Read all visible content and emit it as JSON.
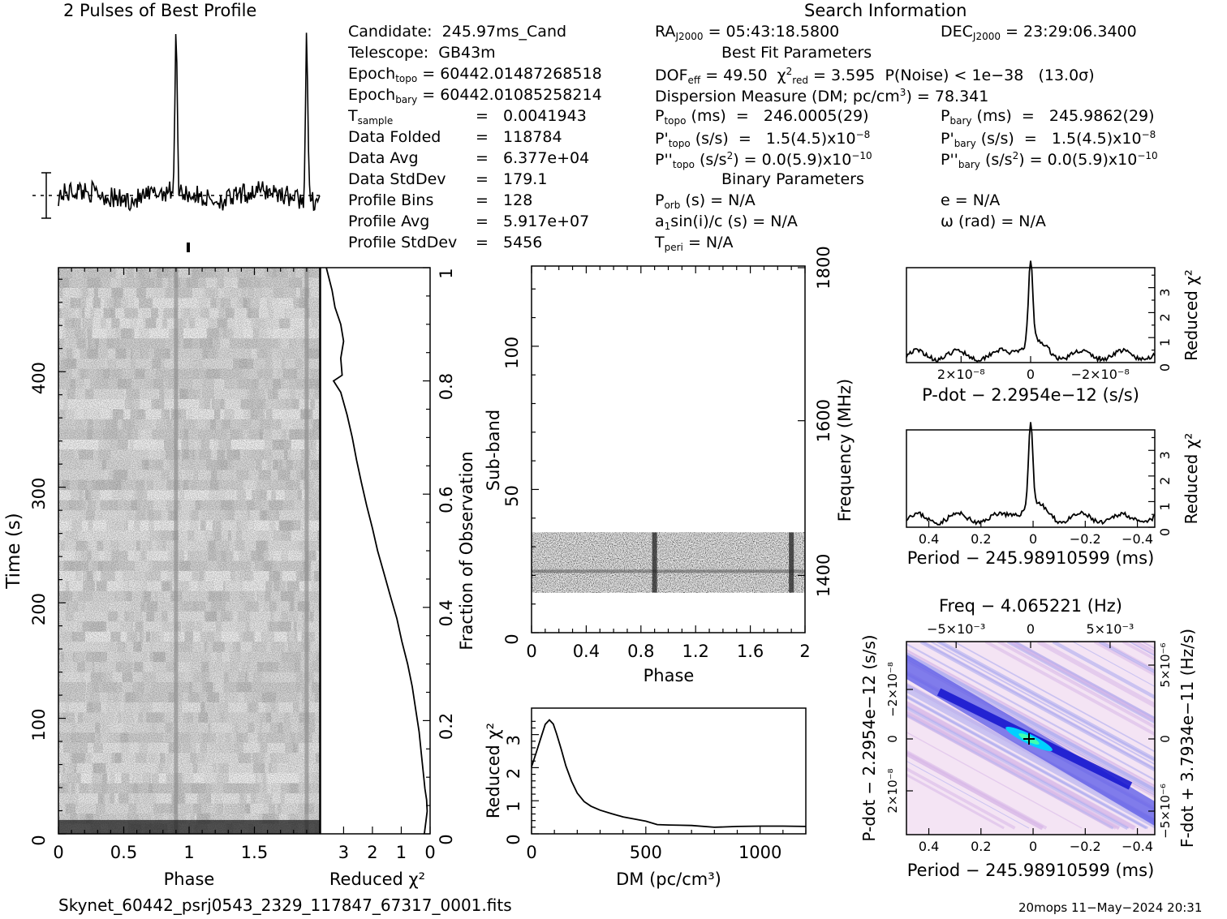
{
  "profile": {
    "title": "2 Pulses of Best Profile"
  },
  "search_info": {
    "title": "Search Information",
    "candidate_label": "Candidate:",
    "candidate": "245.97ms_Cand",
    "telescope_label": "Telescope:",
    "telescope": "GB43m",
    "epoch_topo_label": "Epoch",
    "epoch_topo_sub": "topo",
    "epoch_topo": "= 60442.01487268518",
    "epoch_bary_label": "Epoch",
    "epoch_bary_sub": "bary",
    "epoch_bary": "= 60442.01085258214",
    "tsample_label": "T",
    "tsample_sub": "sample",
    "tsample": "=   0.0041943",
    "data_folded_label": "Data Folded",
    "data_folded": "=   118784",
    "data_avg_label": "Data Avg",
    "data_avg": "=   6.377e+04",
    "data_stddev_label": "Data StdDev",
    "data_stddev": "=   179.1",
    "profile_bins_label": "Profile Bins",
    "profile_bins": "=   128",
    "profile_avg_label": "Profile Avg",
    "profile_avg": "=   5.917e+07",
    "profile_stddev_label": "Profile StdDev",
    "profile_stddev": "=   5456",
    "ra_label": "RA",
    "ra_sub": "J2000",
    "ra": "= 05:43:18.5800",
    "dec_label": "DEC",
    "dec_sub": "J2000",
    "dec": "= 23:29:06.3400",
    "best_fit_title": "Best Fit Parameters",
    "dof_label": "DOF",
    "dof_sub": "eff",
    "dof": "= 49.50",
    "chi2_label": "χ",
    "chi2_sup": "2",
    "chi2_sub": "red",
    "chi2": "= 3.595",
    "pnoise": "P(Noise) < 1e−38   (13.0σ)",
    "dm_label": "Dispersion Measure (DM; pc/cm",
    "dm_sup": "3",
    "dm": ") = 78.341",
    "ptopo_label": "P",
    "ptopo_sub": "topo",
    "ptopo": "(ms)  =   246.0005(29)",
    "pbary_label": "P",
    "pbary_sub": "bary",
    "pbary": "(ms)  =   245.9862(29)",
    "pdtopo_label": "P'",
    "pdtopo_sub": "topo",
    "pdtopo": "(s/s)  =   1.5(4.5)x10",
    "pdtopo_exp": "−8",
    "pdbary_label": "P'",
    "pdbary_sub": "bary",
    "pdbary": "(s/s)  =   1.5(4.5)x10",
    "pdbary_exp": "−8",
    "pddtopo_label": "P''",
    "pddtopo_sub": "topo",
    "pddtopo": "(s/s",
    "pddtopo_tail": ") = 0.0(5.9)x10",
    "pddtopo_exp": "−10",
    "pddbary_label": "P''",
    "pddbary_sub": "bary",
    "pddbary": "(s/s",
    "pddbary_tail": ") = 0.0(5.9)x10",
    "pddbary_exp": "−10",
    "binary_title": "Binary Parameters",
    "porb_label": "P",
    "porb_sub": "orb",
    "porb": "(s) = N/A",
    "e": "e = N/A",
    "a1_label": "a",
    "a1_sub": "1",
    "a1": "sin(i)/c (s) = N/A",
    "omega": "ω (rad) = N/A",
    "tperi_label": "T",
    "tperi_sub": "peri",
    "tperi": "= N/A"
  },
  "footer": {
    "filename": "Skynet_60442_psrj0543_2329_117847_67317_0001.fits",
    "stamp": "20mops 11−May−2024 20:31"
  },
  "chart_data": [
    {
      "id": "profile",
      "type": "line",
      "title": "2 Pulses of Best Profile",
      "xlim": [
        0,
        2
      ],
      "peaks": [
        0.9,
        1.9
      ]
    },
    {
      "id": "time_phase",
      "type": "heatmap",
      "xlabel": "Phase",
      "ylabel": "Time (s)",
      "xlim": [
        0,
        2
      ],
      "ylim": [
        0,
        490
      ],
      "xticks": [
        "0",
        "0.5",
        "1",
        "1.5"
      ],
      "yticks": [
        "0",
        "100",
        "200",
        "300",
        "400"
      ],
      "pulse_phase": [
        0.9,
        1.9
      ]
    },
    {
      "id": "time_chi2",
      "type": "line",
      "xlabel": "Reduced χ²",
      "ylabel": "Fraction of Observation",
      "xlim": [
        3.8,
        0
      ],
      "ylim": [
        0,
        1
      ],
      "xticks": [
        "3",
        "2",
        "1",
        "0"
      ],
      "yticks": [
        "0",
        "0.2",
        "0.4",
        "0.6",
        "0.8",
        "1"
      ],
      "y": [
        0,
        0.02,
        0.04,
        0.06,
        0.08,
        0.1,
        0.14,
        0.18,
        0.22,
        0.26,
        0.3,
        0.34,
        0.38,
        0.42,
        0.46,
        0.5,
        0.54,
        0.58,
        0.62,
        0.66,
        0.7,
        0.74,
        0.78,
        0.8,
        0.81,
        0.84,
        0.87,
        0.9,
        0.93,
        0.96,
        1.0
      ],
      "x": [
        0.2,
        0.15,
        0.1,
        0.12,
        0.18,
        0.22,
        0.3,
        0.38,
        0.5,
        0.62,
        0.78,
        0.98,
        1.15,
        1.38,
        1.6,
        1.82,
        2.0,
        2.2,
        2.38,
        2.55,
        2.7,
        2.88,
        3.1,
        3.35,
        3.05,
        3.1,
        3.0,
        3.1,
        3.3,
        3.4,
        3.6
      ]
    },
    {
      "id": "subband_phase",
      "type": "heatmap",
      "xlabel": "Phase",
      "ylabel": "Sub-band",
      "y2label": "Frequency (MHz)",
      "xlim": [
        0,
        2
      ],
      "ylim": [
        0,
        128
      ],
      "xticks": [
        "0",
        "0.4",
        "0.8",
        "1.2",
        "1.6",
        "2"
      ],
      "yticks": [
        "0",
        "50",
        "100"
      ],
      "y2ticks": [
        "1400",
        "1600",
        "1800"
      ],
      "band_rows": [
        14,
        35
      ],
      "pulse_phase": [
        0.9,
        1.9
      ]
    },
    {
      "id": "dm_curve",
      "type": "line",
      "xlabel": "DM (pc/cm³)",
      "ylabel": "Reduced χ²",
      "xlim": [
        0,
        1200
      ],
      "ylim": [
        0,
        3.8
      ],
      "xticks": [
        "0",
        "500",
        "1000"
      ],
      "yticks": [
        "0",
        "1",
        "2",
        "3"
      ],
      "x": [
        0,
        20,
        40,
        60,
        78,
        95,
        110,
        130,
        150,
        175,
        200,
        230,
        260,
        300,
        350,
        400,
        450,
        500,
        550,
        600,
        650,
        700,
        800,
        900,
        1000,
        1100,
        1200
      ],
      "y": [
        2.0,
        2.45,
        2.9,
        3.3,
        3.45,
        3.3,
        3.0,
        2.55,
        2.05,
        1.6,
        1.25,
        0.98,
        0.82,
        0.7,
        0.6,
        0.52,
        0.44,
        0.36,
        0.3,
        0.26,
        0.24,
        0.25,
        0.22,
        0.23,
        0.22,
        0.24,
        0.22
      ]
    },
    {
      "id": "pdot_curve",
      "type": "line",
      "xlabel": "P-dot − 2.2954e−12 (s/s)",
      "ylabel": "Reduced χ²",
      "xlim": [
        3.5e-08,
        -3.5e-08
      ],
      "ylim": [
        0,
        3.8
      ],
      "xticks": [
        "2×10⁻⁸",
        "0",
        "−2×10⁻⁸"
      ],
      "yticks": [
        "0",
        "1",
        "2",
        "3"
      ],
      "peak_x": 0,
      "peak_y": 3.6,
      "baseline": 0.3
    },
    {
      "id": "period_curve",
      "type": "line",
      "xlabel": "Period − 245.98910599 (ms)",
      "ylabel": "Reduced χ²",
      "xlim": [
        0.5,
        -0.48
      ],
      "ylim": [
        0,
        3.8
      ],
      "xticks": [
        "0.4",
        "0.2",
        "0",
        "−0.2",
        "−0.4"
      ],
      "yticks": [
        "0",
        "1",
        "2",
        "3"
      ],
      "peak_x": 0.01,
      "peak_y": 3.6,
      "baseline": 0.35
    },
    {
      "id": "p_pdot_plane",
      "type": "heatmap",
      "title": "Freq − 4.065221 (Hz)",
      "xlabel": "Period − 245.98910599 (ms)",
      "ylabel": "P-dot − 2.2954e−12 (s/s)",
      "y2label": "F-dot + 3.7934e−11 (Hz/s)",
      "xticks": [
        "0.4",
        "0.2",
        "0",
        "−0.2",
        "−0.4"
      ],
      "x2ticks": [
        "−5×10⁻³",
        "0",
        "5×10⁻³"
      ],
      "yticks": [
        "−2×10⁻⁸",
        "0",
        "2×10⁻⁸"
      ],
      "y2ticks": [
        "5×10⁻⁶",
        "0",
        "−5×10⁻⁶"
      ],
      "colors": [
        "#f4e4f4",
        "#d8b8e8",
        "#a8a8f0",
        "#5a5ae8",
        "#1a1ad0",
        "#00d0ff",
        "#40ffb0"
      ]
    }
  ]
}
